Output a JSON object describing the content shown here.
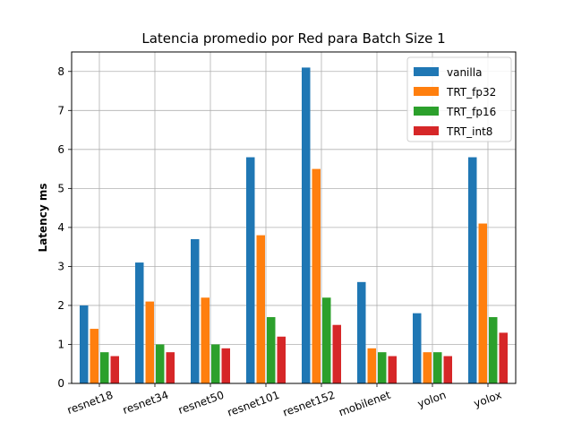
{
  "chart_data": {
    "type": "bar",
    "title": "Latencia promedio por Red para Batch Size 1",
    "xlabel": "",
    "ylabel": "Latency ms",
    "categories": [
      "resnet18",
      "resnet34",
      "resnet50",
      "resnet101",
      "resnet152",
      "mobilenet",
      "yolon",
      "yolox"
    ],
    "series": [
      {
        "name": "vanilla",
        "color": "#1f77b4",
        "values": [
          2.0,
          3.1,
          3.7,
          5.8,
          8.1,
          2.6,
          1.8,
          5.8
        ]
      },
      {
        "name": "TRT_fp32",
        "color": "#ff7f0e",
        "values": [
          1.4,
          2.1,
          2.2,
          3.8,
          5.5,
          0.9,
          0.8,
          4.1
        ]
      },
      {
        "name": "TRT_fp16",
        "color": "#2ca02c",
        "values": [
          0.8,
          1.0,
          1.0,
          1.7,
          2.2,
          0.8,
          0.8,
          1.7
        ]
      },
      {
        "name": "TRT_int8",
        "color": "#d62728",
        "values": [
          0.7,
          0.8,
          0.9,
          1.2,
          1.5,
          0.7,
          0.7,
          1.3
        ]
      }
    ],
    "ylim": [
      0,
      8.5
    ],
    "yticks": [
      0,
      1,
      2,
      3,
      4,
      5,
      6,
      7,
      8
    ],
    "grid": true,
    "legend": "top-right"
  }
}
